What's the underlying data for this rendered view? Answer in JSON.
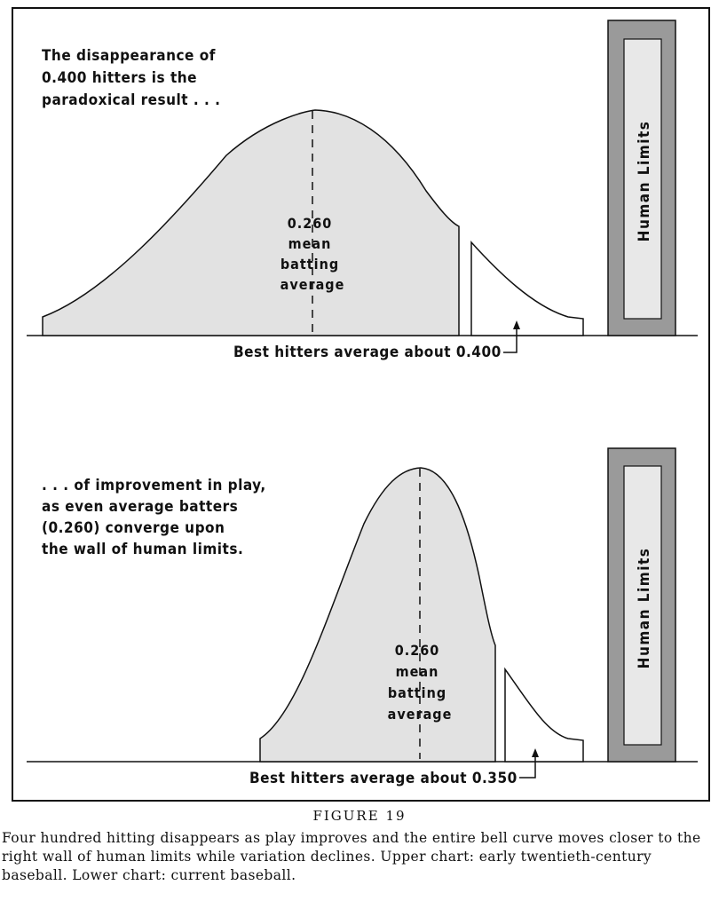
{
  "upper_panel": {
    "annotation_lines": [
      "The disappearance of",
      "0.400 hitters is the",
      "paradoxical result . . ."
    ],
    "mean_label_lines": [
      "0.260",
      "mean",
      "batting",
      "average"
    ],
    "best_hitters_label": "Best hitters average about 0.400",
    "wall_label": "Human Limits",
    "colors": {
      "curve_fill": "#e2e2e2",
      "wall_outer": "#9a9a9a",
      "wall_inner": "#e8e8e8",
      "tail_fill": "#ffffff"
    }
  },
  "lower_panel": {
    "annotation_lines": [
      ". . . of improvement in play,",
      "as even average batters",
      "(0.260) converge upon",
      "the wall of human limits."
    ],
    "mean_label_lines": [
      "0.260",
      "mean",
      "batting",
      "average"
    ],
    "best_hitters_label": "Best hitters average about 0.350",
    "wall_label": "Human Limits",
    "colors": {
      "curve_fill": "#e2e2e2",
      "wall_outer": "#9a9a9a",
      "wall_inner": "#e8e8e8",
      "tail_fill": "#ffffff"
    }
  },
  "caption": {
    "figure_number": "FIGURE 19",
    "text": "Four hundred hitting disappears as play improves and the entire bell curve moves closer to the right wall of human limits while variation declines. Upper chart: early twentieth-century baseball. Lower chart: current baseball."
  }
}
